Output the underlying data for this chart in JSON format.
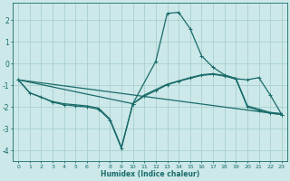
{
  "xlabel": "Humidex (Indice chaleur)",
  "bg_color": "#cce8e8",
  "grid_color": "#aacfcf",
  "line_color": "#1a6b6b",
  "xlim": [
    -0.5,
    23.5
  ],
  "ylim": [
    -4.5,
    2.8
  ],
  "xticks": [
    0,
    1,
    2,
    3,
    4,
    5,
    6,
    7,
    8,
    9,
    10,
    11,
    12,
    13,
    14,
    15,
    16,
    17,
    18,
    19,
    20,
    21,
    22,
    23
  ],
  "yticks": [
    -4,
    -3,
    -2,
    -1,
    0,
    1,
    2
  ],
  "series": [
    {
      "x": [
        0,
        1,
        2,
        3,
        4,
        5,
        6,
        7,
        8,
        9,
        10,
        11,
        12,
        13,
        14,
        15,
        16,
        17,
        18,
        19,
        20,
        21,
        22,
        23
      ],
      "y": [
        -0.75,
        -1.35,
        -1.55,
        -1.75,
        -1.85,
        -1.9,
        -1.95,
        -2.05,
        -2.55,
        -3.85,
        -1.85,
        -1.45,
        -1.2,
        -0.95,
        -0.8,
        -0.65,
        -0.52,
        -0.47,
        -0.55,
        -0.68,
        -1.95,
        -2.1,
        -2.25,
        -2.3
      ],
      "marker": false,
      "lw": 0.9
    },
    {
      "x": [
        0,
        1,
        2,
        3,
        4,
        5,
        6,
        7,
        8,
        9,
        10,
        11,
        12,
        13,
        14,
        15,
        16,
        17,
        18,
        19,
        20,
        21,
        22,
        23
      ],
      "y": [
        -0.75,
        -1.35,
        -1.55,
        -1.78,
        -1.9,
        -1.95,
        -2.0,
        -2.1,
        -2.6,
        -3.9,
        -1.85,
        -1.5,
        -1.25,
        -0.98,
        -0.82,
        -0.68,
        -0.55,
        -0.5,
        -0.58,
        -0.72,
        -2.0,
        -2.15,
        -2.28,
        -2.35
      ],
      "marker": true,
      "lw": 0.9
    },
    {
      "x": [
        0,
        10,
        12,
        13,
        14,
        15,
        16,
        17,
        18,
        19,
        20,
        21,
        22,
        23
      ],
      "y": [
        -0.75,
        -1.85,
        0.1,
        2.3,
        2.35,
        1.6,
        0.35,
        -0.18,
        -0.52,
        -0.7,
        -0.75,
        -0.65,
        -1.45,
        -2.35
      ],
      "marker": true,
      "lw": 0.9
    },
    {
      "x": [
        0,
        23
      ],
      "y": [
        -0.75,
        -2.35
      ],
      "marker": false,
      "lw": 0.9
    }
  ]
}
